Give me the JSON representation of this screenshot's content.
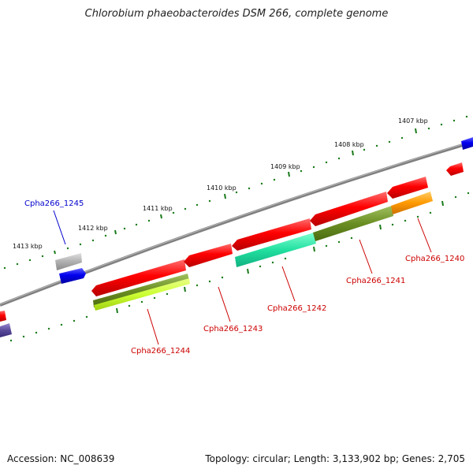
{
  "title": "Chlorobium phaeobacteroides DSM 266, complete genome",
  "accession": "Accession: NC_008639",
  "topology": "Topology: circular; Length: 3,133,902 bp; Genes: 2,705",
  "ruler_labels": [
    "1407 kbp",
    "1408 kbp",
    "1409 kbp",
    "1410 kbp",
    "1411 kbp",
    "1412 kbp",
    "1413 kbp"
  ],
  "genes": [
    {
      "label": "Cpha266_1245",
      "color": "#0000cc"
    },
    {
      "label": "Cpha266_1244",
      "color": "#cc0000"
    },
    {
      "label": "Cpha266_1243",
      "color": "#cc0000"
    },
    {
      "label": "Cpha266_1242",
      "color": "#cc0000"
    },
    {
      "label": "Cpha266_1241",
      "color": "#cc0000"
    },
    {
      "label": "Cpha266_1240",
      "color": "#cc0000"
    }
  ],
  "colors": {
    "backbone": "#808080",
    "tick": "#1a7a1a",
    "forward_gene": "#0000ee",
    "reverse_gene": "#ee0000",
    "rna_gray": "#b0b0b0",
    "cog_olive": "#6b8e23",
    "cog_lime": "#ccff33",
    "cog_teal": "#22e0a0",
    "cog_orange": "#ff9900",
    "cog_purple": "#5a4a9a"
  }
}
